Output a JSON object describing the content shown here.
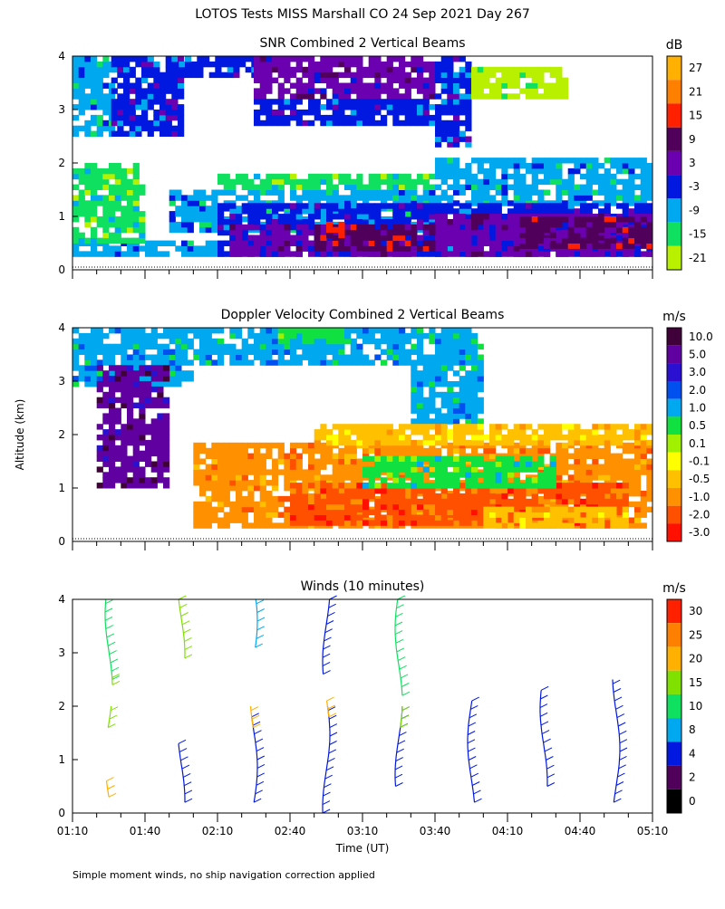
{
  "page": {
    "title": "LOTOS Tests MISS Marshall CO  24 Sep 2021 Day 267",
    "ylabel": "Altitude (km)",
    "xlabel": "Time (UT)",
    "footnote": "Simple moment winds, no ship navigation correction applied"
  },
  "chart_data": [
    {
      "id": "snr",
      "type": "heatmap",
      "title": "SNR Combined 2 Vertical Beams",
      "unit": "dB",
      "xlim": [
        0,
        240
      ],
      "ylim": [
        0,
        4
      ],
      "yticks": [
        "0",
        "1",
        "2",
        "3",
        "4"
      ],
      "xlabel": "Time (UT)",
      "ylabel": "Altitude (km)",
      "colorbar": {
        "labels": [
          "27",
          "21",
          "15",
          "9",
          "3",
          "-3",
          "-9",
          "-15",
          "-21"
        ],
        "colors": [
          "#ffb000",
          "#ff8000",
          "#ff2000",
          "#50005a",
          "#6a00b0",
          "#0018e0",
          "#00a8f0",
          "#10e060",
          "#b8f000"
        ]
      },
      "fields": [
        {
          "t": [
            0,
            64
          ],
          "h": [
            0.25,
            0.5
          ],
          "v": -9
        },
        {
          "t": [
            0,
            30
          ],
          "h": [
            0.5,
            2.0
          ],
          "v": -15
        },
        {
          "t": [
            0,
            16
          ],
          "h": [
            2.5,
            4.0
          ],
          "v": -9
        },
        {
          "t": [
            16,
            44
          ],
          "h": [
            2.5,
            4.0
          ],
          "v": -3
        },
        {
          "t": [
            44,
            75
          ],
          "h": [
            3.6,
            4.0
          ],
          "v": -3
        },
        {
          "t": [
            75,
            150
          ],
          "h": [
            3.2,
            4.0
          ],
          "v": 3
        },
        {
          "t": [
            75,
            150
          ],
          "h": [
            2.7,
            3.2
          ],
          "v": -3
        },
        {
          "t": [
            150,
            165
          ],
          "h": [
            2.3,
            4.0
          ],
          "v": -3
        },
        {
          "t": [
            165,
            205
          ],
          "h": [
            3.2,
            3.8
          ],
          "v": -21
        },
        {
          "t": [
            40,
            150
          ],
          "h": [
            0.7,
            1.5
          ],
          "v": -9
        },
        {
          "t": [
            60,
            150
          ],
          "h": [
            1.5,
            1.8
          ],
          "v": -15
        },
        {
          "t": [
            150,
            240
          ],
          "h": [
            1.2,
            2.1
          ],
          "v": -9
        },
        {
          "t": [
            60,
            240
          ],
          "h": [
            0.25,
            1.2
          ],
          "v": -3
        },
        {
          "t": [
            65,
            140
          ],
          "h": [
            0.25,
            0.8
          ],
          "v": 3
        },
        {
          "t": [
            150,
            240
          ],
          "h": [
            0.25,
            1.0
          ],
          "v": 3
        },
        {
          "t": [
            100,
            150
          ],
          "h": [
            0.35,
            0.8
          ],
          "v": 9
        },
        {
          "t": [
            185,
            240
          ],
          "h": [
            0.4,
            0.9
          ],
          "v": 9
        },
        {
          "t": [
            105,
            112
          ],
          "h": [
            0.6,
            0.8
          ],
          "v": 15
        }
      ]
    },
    {
      "id": "doppler",
      "type": "heatmap",
      "title": "Doppler Velocity Combined 2 Vertical Beams",
      "unit": "m/s",
      "xlim": [
        0,
        240
      ],
      "ylim": [
        0,
        4
      ],
      "yticks": [
        "0",
        "1",
        "2",
        "3",
        "4"
      ],
      "colorbar": {
        "labels": [
          "10.0",
          "5.0",
          "3.0",
          "2.0",
          "1.0",
          "0.5",
          "0.1",
          "-0.1",
          "-0.5",
          "-1.0",
          "-2.0",
          "-3.0"
        ],
        "colors": [
          "#40003a",
          "#6000a0",
          "#2a10d0",
          "#0050f0",
          "#00a8f0",
          "#10e040",
          "#a0f000",
          "#ffff00",
          "#ffc000",
          "#ff9000",
          "#ff5000",
          "#ff1000"
        ]
      },
      "fields": [
        {
          "t": [
            0,
            50
          ],
          "h": [
            2.9,
            4.0
          ],
          "v": 1.0
        },
        {
          "t": [
            10,
            40
          ],
          "h": [
            1.0,
            3.3
          ],
          "v": 5.0
        },
        {
          "t": [
            50,
            170
          ],
          "h": [
            3.3,
            4.0
          ],
          "v": 1.0
        },
        {
          "t": [
            85,
            115
          ],
          "h": [
            3.7,
            4.0
          ],
          "v": 0.5
        },
        {
          "t": [
            140,
            170
          ],
          "h": [
            2.2,
            3.3
          ],
          "v": 1.0
        },
        {
          "t": [
            50,
            240
          ],
          "h": [
            0.25,
            1.8
          ],
          "v": -1.0
        },
        {
          "t": [
            100,
            240
          ],
          "h": [
            1.8,
            2.2
          ],
          "v": -0.5
        },
        {
          "t": [
            90,
            230
          ],
          "h": [
            0.3,
            1.0
          ],
          "v": -2.0
        },
        {
          "t": [
            120,
            200
          ],
          "h": [
            1.0,
            1.6
          ],
          "v": 0.5
        },
        {
          "t": [
            170,
            230
          ],
          "h": [
            0.25,
            0.6
          ],
          "v": -0.5
        }
      ]
    },
    {
      "id": "winds",
      "type": "scatter",
      "title": "Winds (10 minutes)",
      "unit": "m/s",
      "xlim": [
        0,
        240
      ],
      "ylim": [
        0,
        4
      ],
      "yticks": [
        "0",
        "1",
        "2",
        "3",
        "4"
      ],
      "xticks": [
        "01:10",
        "01:40",
        "02:10",
        "02:40",
        "03:10",
        "03:40",
        "04:10",
        "04:40",
        "05:10"
      ],
      "colorbar": {
        "labels": [
          "30",
          "25",
          "20",
          "15",
          "10",
          "8",
          "4",
          "2",
          "0"
        ],
        "colors": [
          "#ff2000",
          "#ff8000",
          "#ffb000",
          "#80e000",
          "#10e060",
          "#00a8f0",
          "#0018e0",
          "#50005a",
          "#000000"
        ]
      },
      "profiles": [
        {
          "t": 15,
          "segments": [
            {
              "h": [
                2.5,
                4.0
              ],
              "speed": 10
            },
            {
              "h": [
                2.4,
                2.6
              ],
              "speed": 15
            },
            {
              "h": [
                0.3,
                0.6
              ],
              "speed": 20
            },
            {
              "h": [
                1.6,
                2.0
              ],
              "speed": 15
            }
          ]
        },
        {
          "t": 45,
          "segments": [
            {
              "h": [
                2.9,
                4.0
              ],
              "speed": 15
            },
            {
              "h": [
                0.2,
                1.3
              ],
              "speed": 4
            }
          ]
        },
        {
          "t": 75,
          "segments": [
            {
              "h": [
                3.1,
                4.0
              ],
              "speed": 8
            },
            {
              "h": [
                0.2,
                1.8
              ],
              "speed": 4
            },
            {
              "h": [
                1.6,
                2.0
              ],
              "speed": 20
            }
          ]
        },
        {
          "t": 105,
          "segments": [
            {
              "h": [
                2.6,
                4.0
              ],
              "speed": 4
            },
            {
              "h": [
                0.0,
                2.0
              ],
              "speed": 4
            },
            {
              "h": [
                1.8,
                2.1
              ],
              "speed": 20
            }
          ]
        },
        {
          "t": 135,
          "segments": [
            {
              "h": [
                2.2,
                4.0
              ],
              "speed": 10
            },
            {
              "h": [
                0.5,
                2.0
              ],
              "speed": 4
            },
            {
              "h": [
                1.6,
                2.0
              ],
              "speed": 15
            }
          ]
        },
        {
          "t": 165,
          "segments": [
            {
              "h": [
                0.2,
                2.1
              ],
              "speed": 4
            }
          ]
        },
        {
          "t": 195,
          "segments": [
            {
              "h": [
                0.5,
                2.3
              ],
              "speed": 4
            }
          ]
        },
        {
          "t": 225,
          "segments": [
            {
              "h": [
                0.2,
                2.5
              ],
              "speed": 4
            }
          ]
        }
      ]
    }
  ]
}
